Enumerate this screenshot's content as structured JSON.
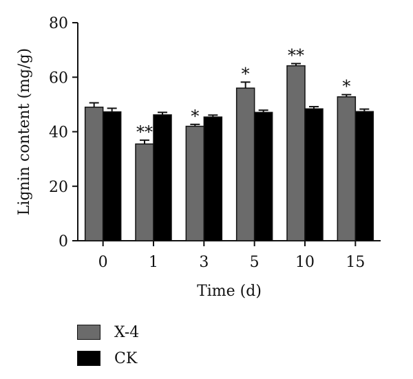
{
  "chart_data": {
    "type": "bar",
    "categories": [
      "0",
      "1",
      "3",
      "5",
      "10",
      "15"
    ],
    "series": [
      {
        "name": "X-4",
        "values": [
          49,
          35.5,
          42,
          56,
          64.2,
          52.8
        ],
        "errors": [
          1.6,
          1.4,
          0.7,
          2.2,
          0.8,
          0.8
        ],
        "significance": [
          "",
          "**",
          "*",
          "*",
          "**",
          "*"
        ],
        "color": "#6b6b6b"
      },
      {
        "name": "CK",
        "values": [
          47.3,
          46.2,
          45.4,
          47.1,
          48.4,
          47.4
        ],
        "errors": [
          1.3,
          0.9,
          0.7,
          0.8,
          0.8,
          0.9
        ],
        "significance": [
          "",
          "",
          "",
          "",
          "",
          ""
        ],
        "color": "#000000"
      }
    ],
    "xlabel": "Time (d)",
    "ylabel": "Lignin content (mg/g)",
    "ylim": [
      0,
      80
    ],
    "yticks": [
      "0",
      "20",
      "40",
      "60",
      "80"
    ],
    "grid": false,
    "legend_position": "bottom-left"
  }
}
